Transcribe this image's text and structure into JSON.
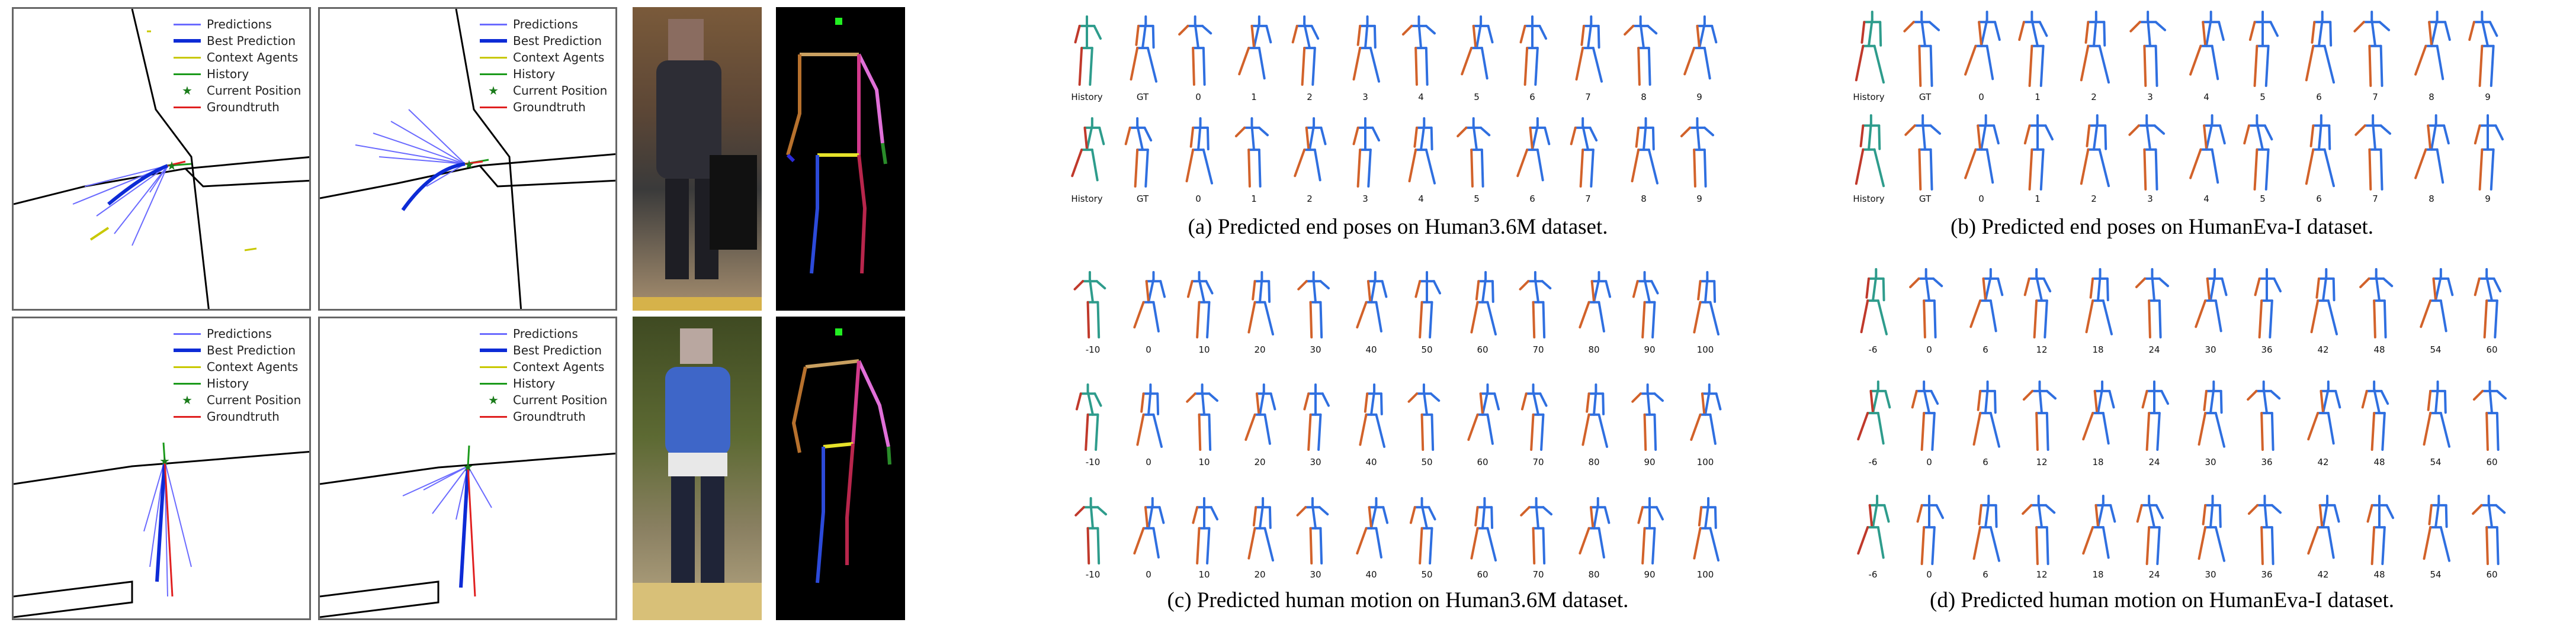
{
  "legend": {
    "entries": [
      {
        "label": "Predictions",
        "color": "#6b6bff",
        "kind": "line"
      },
      {
        "label": "Best Prediction",
        "color": "#0d2bd6",
        "kind": "thick"
      },
      {
        "label": "Context Agents",
        "color": "#c8c800",
        "kind": "line"
      },
      {
        "label": "History",
        "color": "#1b9a1b",
        "kind": "line"
      },
      {
        "label": "Current Position",
        "color": "#1b7c1b",
        "kind": "star"
      },
      {
        "label": "Groundtruth",
        "color": "#e02020",
        "kind": "line"
      }
    ]
  },
  "colors": {
    "skel_red": "#c0392b",
    "skel_teal": "#2e9c8c",
    "skel_blue": "#2f6fe0",
    "skel_orange": "#d2622a"
  },
  "h36m": {
    "end_labels": [
      "History",
      "GT",
      "0",
      "1",
      "2",
      "3",
      "4",
      "5",
      "6",
      "7",
      "8",
      "9"
    ],
    "motion_labels": [
      "-10",
      "0",
      "10",
      "20",
      "30",
      "40",
      "50",
      "60",
      "70",
      "80",
      "90",
      "100"
    ],
    "caption_end": "(a) Predicted end poses on Human3.6M dataset.",
    "caption_motion": "(c) Predicted human motion on Human3.6M dataset."
  },
  "humaneva": {
    "end_labels": [
      "History",
      "GT",
      "0",
      "1",
      "2",
      "3",
      "4",
      "5",
      "6",
      "7",
      "8",
      "9"
    ],
    "motion_labels": [
      "-6",
      "0",
      "6",
      "12",
      "18",
      "24",
      "30",
      "36",
      "42",
      "48",
      "54",
      "60"
    ],
    "caption_end": "(b) Predicted end poses on HumanEva-I dataset.",
    "caption_motion": "(d) Predicted human motion on HumanEva-I dataset."
  }
}
